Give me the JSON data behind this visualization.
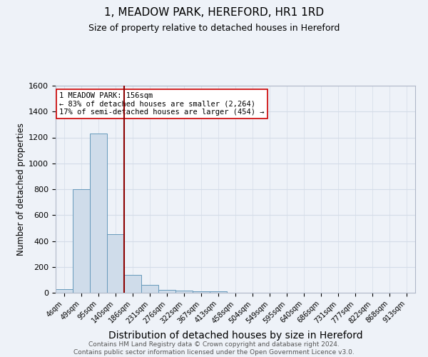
{
  "title": "1, MEADOW PARK, HEREFORD, HR1 1RD",
  "subtitle": "Size of property relative to detached houses in Hereford",
  "xlabel": "Distribution of detached houses by size in Hereford",
  "ylabel": "Number of detached properties",
  "categories": [
    "4sqm",
    "49sqm",
    "95sqm",
    "140sqm",
    "186sqm",
    "231sqm",
    "276sqm",
    "322sqm",
    "367sqm",
    "413sqm",
    "458sqm",
    "504sqm",
    "549sqm",
    "595sqm",
    "640sqm",
    "686sqm",
    "731sqm",
    "777sqm",
    "822sqm",
    "868sqm",
    "913sqm"
  ],
  "values": [
    25,
    800,
    1230,
    450,
    140,
    60,
    20,
    15,
    10,
    10,
    0,
    0,
    0,
    0,
    0,
    0,
    0,
    0,
    0,
    0,
    0
  ],
  "bar_color": "#cfdcea",
  "bar_edge_color": "#6699bb",
  "grid_color": "#d4dce8",
  "background_color": "#eef2f8",
  "vline_x_index": 3.5,
  "vline_color": "#8b0000",
  "annotation_text": "1 MEADOW PARK: 156sqm\n← 83% of detached houses are smaller (2,264)\n17% of semi-detached houses are larger (454) →",
  "annotation_box_color": "#ffffff",
  "annotation_box_edge": "#cc0000",
  "ylim": [
    0,
    1600
  ],
  "yticks": [
    0,
    200,
    400,
    600,
    800,
    1000,
    1200,
    1400,
    1600
  ],
  "footer_line1": "Contains HM Land Registry data © Crown copyright and database right 2024.",
  "footer_line2": "Contains public sector information licensed under the Open Government Licence v3.0.",
  "title_fontsize": 11,
  "subtitle_fontsize": 9,
  "xlabel_fontsize": 10,
  "ylabel_fontsize": 8.5,
  "tick_fontsize": 7,
  "footer_fontsize": 6.5,
  "annotation_fontsize": 7.5
}
